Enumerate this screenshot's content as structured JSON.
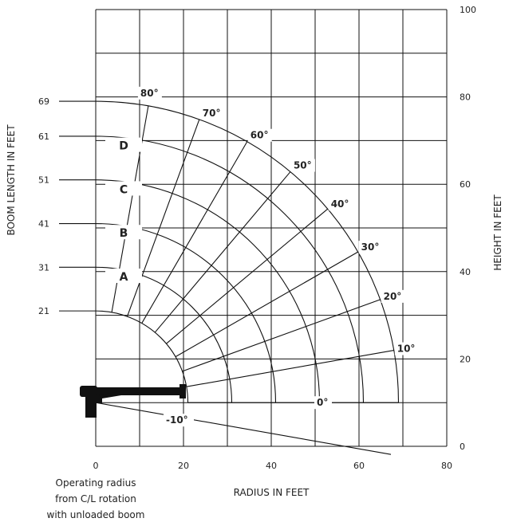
{
  "chart_data": {
    "type": "range_diagram",
    "xlabel": "RADIUS IN FEET",
    "ylabel_left": "BOOM LENGTH IN FEET",
    "ylabel_right": "HEIGHT IN FEET",
    "xlim": [
      0,
      80
    ],
    "ylim": [
      0,
      100
    ],
    "x_ticks": [
      "0",
      "20",
      "40",
      "60",
      "80"
    ],
    "y_ticks_right": [
      "0",
      "20",
      "40",
      "60",
      "80",
      "100"
    ],
    "boom_length_labels": [
      "69",
      "61",
      "51",
      "41",
      "31",
      "21"
    ],
    "boom_lengths": [
      69,
      61,
      51,
      41,
      31,
      21
    ],
    "section_labels": [
      {
        "label": "D",
        "boom_length": 61
      },
      {
        "label": "C",
        "boom_length": 51
      },
      {
        "label": "B",
        "boom_length": 41
      },
      {
        "label": "A",
        "boom_length": 31
      }
    ],
    "boom_angles": [
      {
        "label": "80°",
        "deg": 80
      },
      {
        "label": "70°",
        "deg": 70
      },
      {
        "label": "60°",
        "deg": 60
      },
      {
        "label": "50°",
        "deg": 50
      },
      {
        "label": "40°",
        "deg": 40
      },
      {
        "label": "30°",
        "deg": 30
      },
      {
        "label": "20°",
        "deg": 20
      },
      {
        "label": "10°",
        "deg": 10
      },
      {
        "label": "0°",
        "deg": 0
      },
      {
        "label": "-10°",
        "deg": -10
      }
    ],
    "pivot": {
      "x": 0,
      "y": 10
    },
    "note_lines": [
      "Operating radius",
      "from C/L rotation",
      "with unloaded boom"
    ]
  }
}
